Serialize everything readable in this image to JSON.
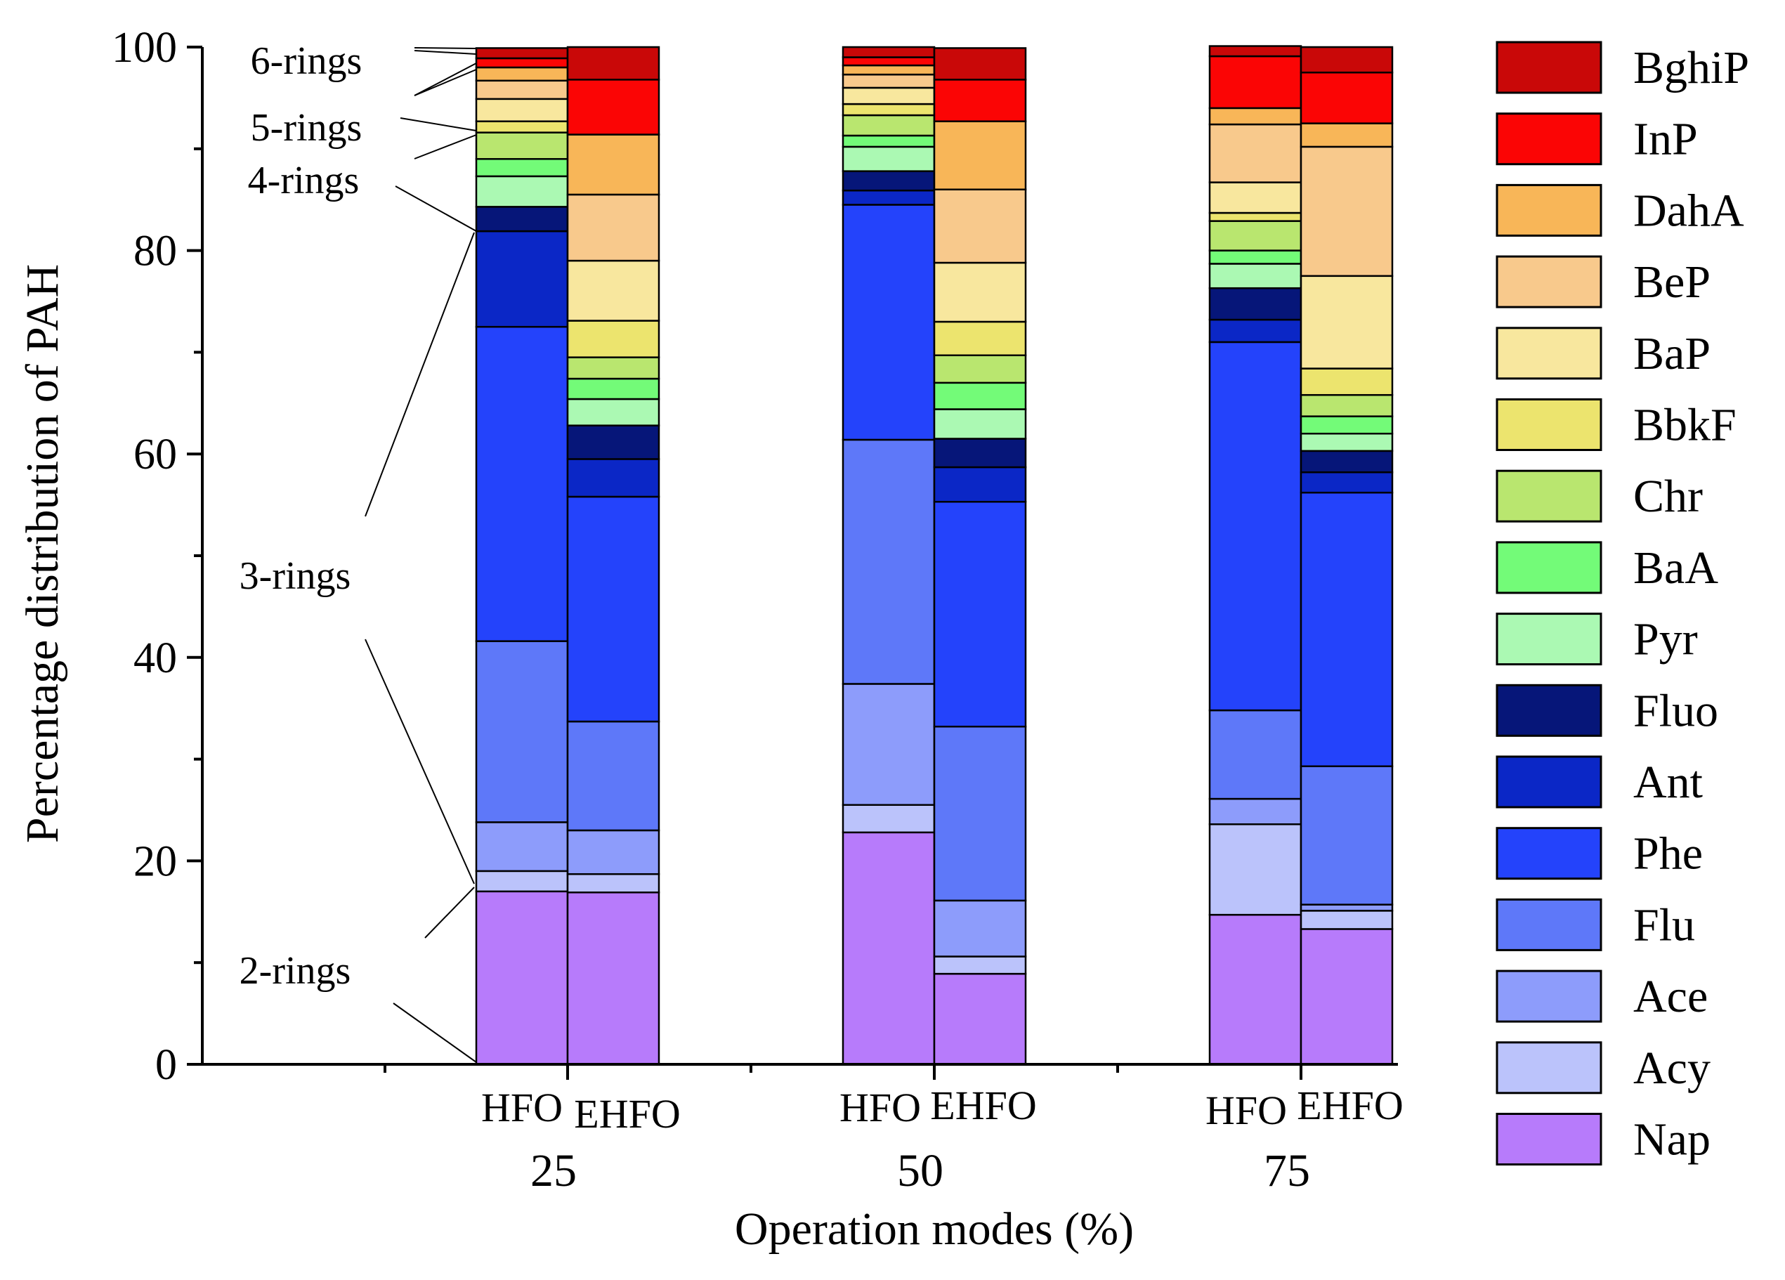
{
  "chart_data": {
    "type": "bar",
    "stacked": true,
    "title": "",
    "ylabel": "Percentage distribution of PAH",
    "xlabel": "Operation modes (%)",
    "ylim": [
      0,
      100
    ],
    "yticks": [
      0,
      20,
      40,
      60,
      80,
      100
    ],
    "groups": [
      "25",
      "50",
      "75"
    ],
    "bar_labels": [
      "HFO",
      "EHFO"
    ],
    "species": [
      "Nap",
      "Acy",
      "Ace",
      "Flu",
      "Phe",
      "Ant",
      "Fluo",
      "Pyr",
      "BaA",
      "Chr",
      "BbkF",
      "BaP",
      "BeP",
      "DahA",
      "InP",
      "BghiP"
    ],
    "colors": [
      "#b77bfb",
      "#bbc3fb",
      "#8d9cfb",
      "#5e78f9",
      "#2443fb",
      "#0b27c6",
      "#061679",
      "#abf9b3",
      "#73fb78",
      "#b9e66f",
      "#ece46e",
      "#f8e79e",
      "#f8c98c",
      "#f8b658",
      "#fb0505",
      "#c90808"
    ],
    "series": [
      {
        "name": "Nap",
        "values": [
          [
            17.0,
            16.9
          ],
          [
            22.8,
            8.9
          ],
          [
            14.7,
            13.3
          ]
        ]
      },
      {
        "name": "Acy",
        "values": [
          [
            2.0,
            1.8
          ],
          [
            2.7,
            1.7
          ],
          [
            8.9,
            1.8
          ]
        ]
      },
      {
        "name": "Ace",
        "values": [
          [
            4.8,
            4.3
          ],
          [
            11.9,
            5.5
          ],
          [
            2.5,
            0.6
          ]
        ]
      },
      {
        "name": "Flu",
        "values": [
          [
            17.8,
            10.7
          ],
          [
            24.0,
            17.1
          ],
          [
            8.7,
            13.6
          ]
        ]
      },
      {
        "name": "Phe",
        "values": [
          [
            30.9,
            22.1
          ],
          [
            23.1,
            22.1
          ],
          [
            36.2,
            26.9
          ]
        ]
      },
      {
        "name": "Ant",
        "values": [
          [
            9.4,
            3.7
          ],
          [
            1.4,
            3.4
          ],
          [
            2.2,
            2.0
          ]
        ]
      },
      {
        "name": "Fluo",
        "values": [
          [
            2.4,
            3.3
          ],
          [
            1.9,
            2.8
          ],
          [
            3.1,
            2.1
          ]
        ]
      },
      {
        "name": "Pyr",
        "values": [
          [
            3.0,
            2.6
          ],
          [
            2.4,
            2.9
          ],
          [
            2.4,
            1.7
          ]
        ]
      },
      {
        "name": "BaA",
        "values": [
          [
            1.7,
            2.0
          ],
          [
            1.1,
            2.6
          ],
          [
            1.3,
            1.7
          ]
        ]
      },
      {
        "name": "Chr",
        "values": [
          [
            2.6,
            2.1
          ],
          [
            2.0,
            2.7
          ],
          [
            2.9,
            2.1
          ]
        ]
      },
      {
        "name": "BbkF",
        "values": [
          [
            1.1,
            3.6
          ],
          [
            1.1,
            3.3
          ],
          [
            0.8,
            2.6
          ]
        ]
      },
      {
        "name": "BaP",
        "values": [
          [
            2.2,
            5.9
          ],
          [
            1.6,
            5.8
          ],
          [
            3.0,
            9.1
          ]
        ]
      },
      {
        "name": "BeP",
        "values": [
          [
            1.8,
            6.5
          ],
          [
            1.3,
            7.2
          ],
          [
            5.7,
            12.7
          ]
        ]
      },
      {
        "name": "DahA",
        "values": [
          [
            1.3,
            5.9
          ],
          [
            0.9,
            6.7
          ],
          [
            1.6,
            2.3
          ]
        ]
      },
      {
        "name": "InP",
        "values": [
          [
            0.9,
            5.4
          ],
          [
            0.8,
            4.1
          ],
          [
            5.1,
            5.0
          ]
        ]
      },
      {
        "name": "BghiP",
        "values": [
          [
            1.0,
            3.2
          ],
          [
            1.0,
            3.1
          ],
          [
            1.0,
            2.5
          ]
        ]
      }
    ],
    "ring_annotations": [
      "6-rings",
      "5-rings",
      "4-rings",
      "3-rings",
      "2-rings"
    ],
    "legend_position": "right"
  }
}
